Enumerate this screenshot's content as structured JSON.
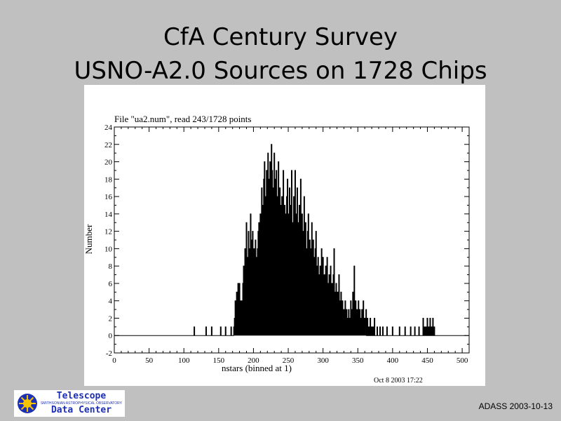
{
  "slide": {
    "title_line1": "CfA Century Survey",
    "title_line2": "USNO-A2.0 Sources on 1728 Chips",
    "footer": "ADASS 2003-10-13"
  },
  "logo": {
    "line1": "Telescope",
    "line2": "SMITHSONIAN ASTROPHYSICAL OBSERVATORY",
    "line3": "Data Center",
    "icon": "sun-icon",
    "color": "#1d2fb5",
    "sun_color": "#f5c400"
  },
  "chart_data": {
    "type": "histogram-step",
    "title": "File \"ua2.num\", read 243/1728 points",
    "xlabel": "nstars (binned at 1)",
    "ylabel": "Number",
    "date_stamp": "Oct  8 2003 17:22",
    "xlim": [
      0,
      510
    ],
    "ylim": [
      -2,
      24
    ],
    "xticks": [
      0,
      50,
      100,
      150,
      200,
      250,
      300,
      350,
      400,
      450,
      500
    ],
    "yticks": [
      -2,
      0,
      2,
      4,
      6,
      8,
      10,
      12,
      14,
      16,
      18,
      20,
      22,
      24
    ],
    "points": [
      [
        115,
        1
      ],
      [
        132,
        1
      ],
      [
        140,
        1
      ],
      [
        153,
        1
      ],
      [
        160,
        1
      ],
      [
        168,
        1
      ],
      [
        172,
        1
      ],
      [
        173,
        2
      ],
      [
        174,
        4
      ],
      [
        175,
        1
      ],
      [
        176,
        5
      ],
      [
        177,
        3
      ],
      [
        178,
        6
      ],
      [
        179,
        2
      ],
      [
        180,
        6
      ],
      [
        181,
        4
      ],
      [
        182,
        1
      ],
      [
        183,
        4
      ],
      [
        184,
        2
      ],
      [
        185,
        6
      ],
      [
        186,
        8
      ],
      [
        187,
        6
      ],
      [
        188,
        10
      ],
      [
        189,
        7
      ],
      [
        190,
        13
      ],
      [
        191,
        9
      ],
      [
        192,
        8
      ],
      [
        193,
        12
      ],
      [
        194,
        6
      ],
      [
        195,
        10
      ],
      [
        196,
        14
      ],
      [
        197,
        11
      ],
      [
        198,
        9
      ],
      [
        199,
        12
      ],
      [
        200,
        8
      ],
      [
        201,
        10
      ],
      [
        202,
        6
      ],
      [
        203,
        11
      ],
      [
        204,
        9
      ],
      [
        205,
        7
      ],
      [
        206,
        10
      ],
      [
        207,
        12
      ],
      [
        208,
        13
      ],
      [
        209,
        10
      ],
      [
        210,
        14
      ],
      [
        211,
        12
      ],
      [
        212,
        17
      ],
      [
        213,
        15
      ],
      [
        214,
        13
      ],
      [
        215,
        18
      ],
      [
        216,
        20
      ],
      [
        217,
        16
      ],
      [
        218,
        14
      ],
      [
        219,
        19
      ],
      [
        220,
        15
      ],
      [
        221,
        21
      ],
      [
        222,
        18
      ],
      [
        223,
        13
      ],
      [
        224,
        20
      ],
      [
        225,
        16
      ],
      [
        226,
        22
      ],
      [
        227,
        19
      ],
      [
        228,
        17
      ],
      [
        229,
        14
      ],
      [
        230,
        21
      ],
      [
        231,
        18
      ],
      [
        232,
        12
      ],
      [
        233,
        19
      ],
      [
        234,
        16
      ],
      [
        235,
        14
      ],
      [
        236,
        20
      ],
      [
        237,
        12
      ],
      [
        238,
        17
      ],
      [
        239,
        15
      ],
      [
        240,
        10
      ],
      [
        241,
        16
      ],
      [
        242,
        13
      ],
      [
        243,
        19
      ],
      [
        244,
        11
      ],
      [
        245,
        15
      ],
      [
        246,
        7
      ],
      [
        247,
        14
      ],
      [
        248,
        16
      ],
      [
        249,
        18
      ],
      [
        250,
        12
      ],
      [
        251,
        14
      ],
      [
        252,
        17
      ],
      [
        253,
        11
      ],
      [
        254,
        15
      ],
      [
        255,
        19
      ],
      [
        256,
        13
      ],
      [
        257,
        10
      ],
      [
        258,
        16
      ],
      [
        259,
        12
      ],
      [
        260,
        19
      ],
      [
        261,
        14
      ],
      [
        262,
        11
      ],
      [
        263,
        17
      ],
      [
        264,
        13
      ],
      [
        265,
        9
      ],
      [
        266,
        15
      ],
      [
        267,
        12
      ],
      [
        268,
        18
      ],
      [
        269,
        10
      ],
      [
        270,
        14
      ],
      [
        271,
        8
      ],
      [
        272,
        12
      ],
      [
        273,
        16
      ],
      [
        274,
        11
      ],
      [
        275,
        13
      ],
      [
        276,
        6
      ],
      [
        277,
        10
      ],
      [
        278,
        12
      ],
      [
        279,
        14
      ],
      [
        280,
        9
      ],
      [
        281,
        11
      ],
      [
        282,
        8
      ],
      [
        283,
        10
      ],
      [
        284,
        13
      ],
      [
        285,
        7
      ],
      [
        286,
        11
      ],
      [
        287,
        9
      ],
      [
        288,
        6
      ],
      [
        289,
        10
      ],
      [
        290,
        12
      ],
      [
        291,
        8
      ],
      [
        292,
        5
      ],
      [
        293,
        9
      ],
      [
        294,
        7
      ],
      [
        295,
        4
      ],
      [
        296,
        8
      ],
      [
        297,
        6
      ],
      [
        298,
        10
      ],
      [
        299,
        5
      ],
      [
        300,
        9
      ],
      [
        301,
        4
      ],
      [
        302,
        7
      ],
      [
        303,
        3
      ],
      [
        304,
        8
      ],
      [
        305,
        5
      ],
      [
        306,
        9
      ],
      [
        307,
        6
      ],
      [
        308,
        2
      ],
      [
        309,
        7
      ],
      [
        310,
        5
      ],
      [
        311,
        8
      ],
      [
        312,
        3
      ],
      [
        313,
        6
      ],
      [
        314,
        4
      ],
      [
        315,
        7
      ],
      [
        316,
        10
      ],
      [
        317,
        5
      ],
      [
        318,
        3
      ],
      [
        319,
        6
      ],
      [
        320,
        2
      ],
      [
        321,
        5
      ],
      [
        322,
        3
      ],
      [
        323,
        7
      ],
      [
        324,
        4
      ],
      [
        325,
        2
      ],
      [
        326,
        5
      ],
      [
        327,
        1
      ],
      [
        328,
        4
      ],
      [
        329,
        2
      ],
      [
        330,
        3
      ],
      [
        331,
        1
      ],
      [
        332,
        4
      ],
      [
        333,
        2
      ],
      [
        334,
        3
      ],
      [
        335,
        1
      ],
      [
        336,
        2
      ],
      [
        337,
        3
      ],
      [
        338,
        1
      ],
      [
        339,
        2
      ],
      [
        340,
        4
      ],
      [
        341,
        3
      ],
      [
        342,
        2
      ],
      [
        343,
        5
      ],
      [
        344,
        3
      ],
      [
        345,
        8
      ],
      [
        346,
        2
      ],
      [
        347,
        4
      ],
      [
        348,
        1
      ],
      [
        349,
        3
      ],
      [
        350,
        2
      ],
      [
        351,
        4
      ],
      [
        352,
        1
      ],
      [
        353,
        3
      ],
      [
        354,
        2
      ],
      [
        355,
        1
      ],
      [
        356,
        3
      ],
      [
        357,
        2
      ],
      [
        358,
        4
      ],
      [
        359,
        1
      ],
      [
        360,
        2
      ],
      [
        361,
        1
      ],
      [
        362,
        3
      ],
      [
        364,
        2
      ],
      [
        366,
        1
      ],
      [
        368,
        2
      ],
      [
        370,
        1
      ],
      [
        372,
        1
      ],
      [
        374,
        2
      ],
      [
        378,
        1
      ],
      [
        382,
        1
      ],
      [
        386,
        1
      ],
      [
        392,
        1
      ],
      [
        400,
        1
      ],
      [
        410,
        1
      ],
      [
        418,
        1
      ],
      [
        426,
        1
      ],
      [
        432,
        1
      ],
      [
        438,
        1
      ],
      [
        444,
        2
      ],
      [
        446,
        1
      ],
      [
        448,
        1
      ],
      [
        450,
        2
      ],
      [
        452,
        1
      ],
      [
        454,
        2
      ],
      [
        456,
        1
      ],
      [
        458,
        2
      ],
      [
        460,
        1
      ]
    ]
  }
}
